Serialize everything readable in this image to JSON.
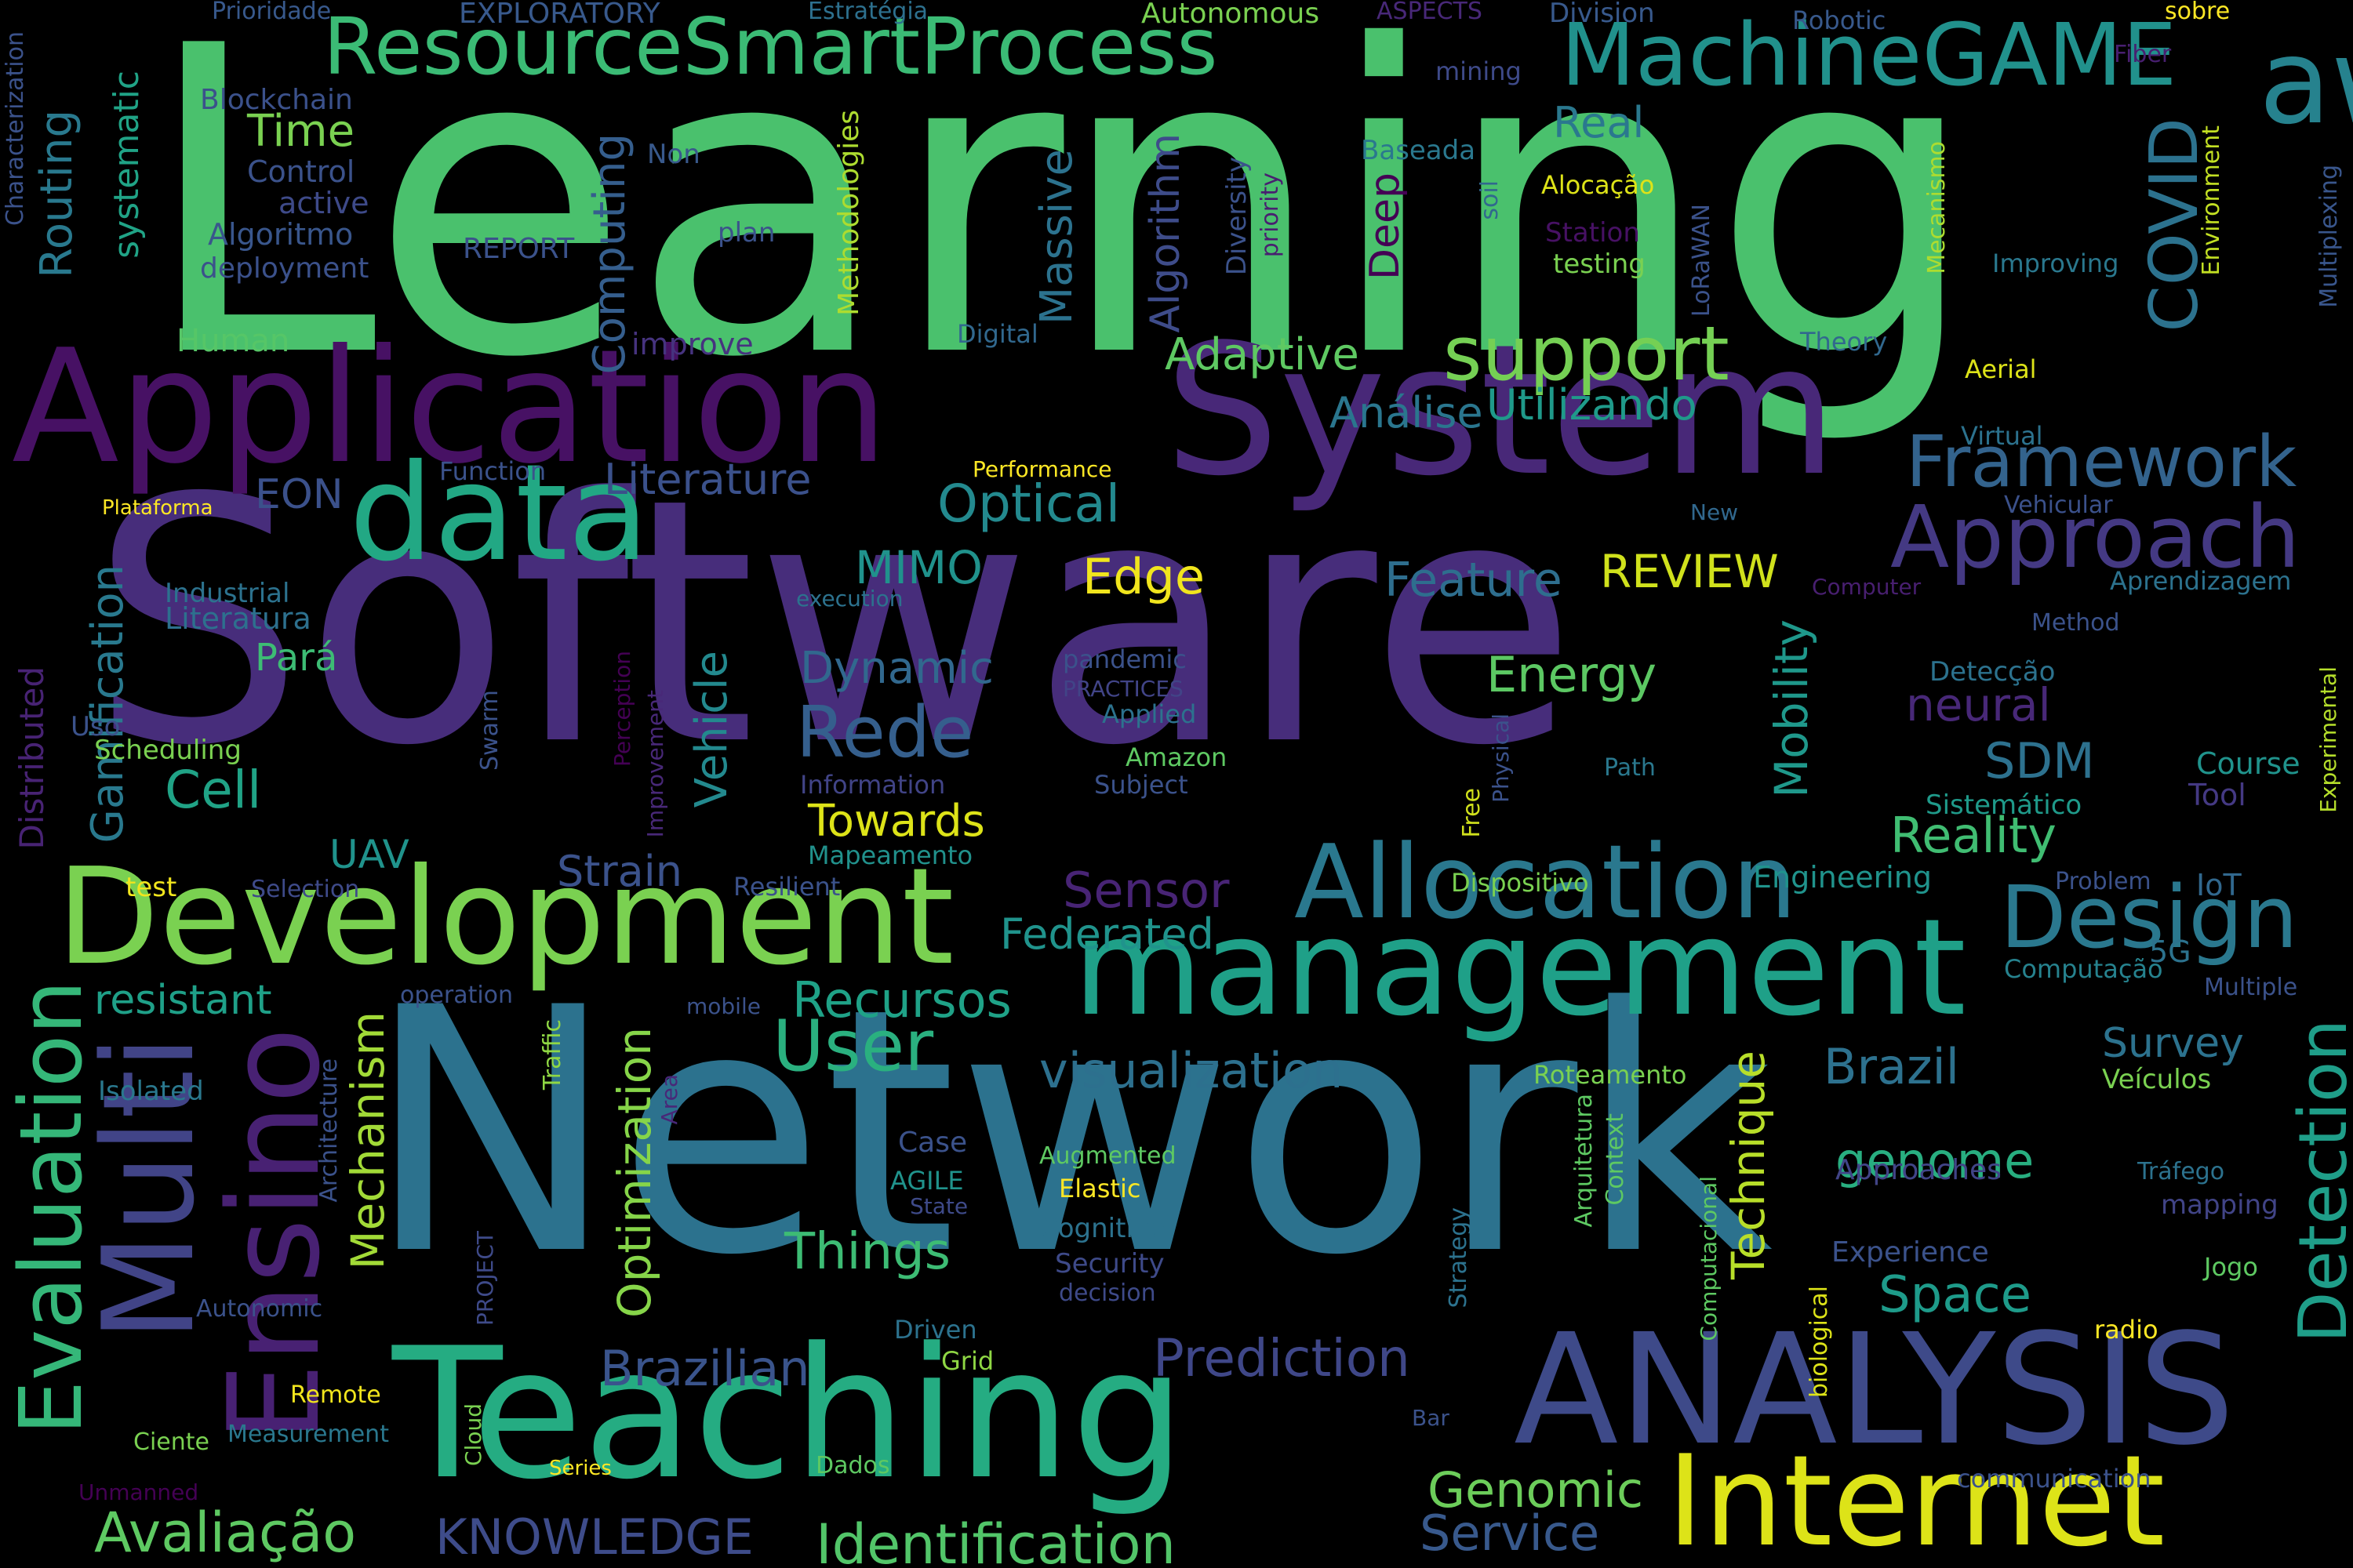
{
  "words": [
    {
      "text": "Learning",
      "color": "#4ac16d"
    },
    {
      "text": "Software",
      "color": "#472d7b"
    },
    {
      "text": "Network",
      "color": "#2c728e"
    },
    {
      "text": "Application",
      "color": "#471164"
    },
    {
      "text": "System",
      "color": "#482878"
    },
    {
      "text": "Teaching",
      "color": "#25ac82"
    },
    {
      "text": "ANALYSIS",
      "color": "#3e4a89"
    },
    {
      "text": "Development",
      "color": "#7ad151"
    },
    {
      "text": "management",
      "color": "#1fa088"
    },
    {
      "text": "Internet",
      "color": "#dde318"
    },
    {
      "text": "data",
      "color": "#22a884"
    },
    {
      "text": "aware",
      "color": "#26828e"
    },
    {
      "text": "Allocation",
      "color": "#2a788e"
    },
    {
      "text": "ResourceSmartProcess",
      "color": "#3bbb75"
    },
    {
      "text": "Multi",
      "color": "#414487"
    },
    {
      "text": "Ensino",
      "color": "#482173"
    },
    {
      "text": "Evaluation",
      "color": "#35b779"
    },
    {
      "text": "MachineGAME",
      "color": "#21918c"
    },
    {
      "text": "Approach",
      "color": "#443983"
    },
    {
      "text": "Design",
      "color": "#2a788e"
    },
    {
      "text": "support",
      "color": "#75d054"
    },
    {
      "text": "Framework",
      "color": "#33638d"
    },
    {
      "text": "Detection",
      "color": "#1f9e89"
    },
    {
      "text": "COVID",
      "color": "#2c728e"
    },
    {
      "text": "User",
      "color": "#2ab07f"
    },
    {
      "text": "Avaliação",
      "color": "#5ec962"
    },
    {
      "text": "Identification",
      "color": "#52c569"
    },
    {
      "text": "KNOWLEDGE",
      "color": "#3e4c8a"
    },
    {
      "text": "Rede",
      "color": "#355f8d"
    },
    {
      "text": "Recursos",
      "color": "#1fa287"
    },
    {
      "text": "visualization",
      "color": "#2d708e"
    },
    {
      "text": "Prediction",
      "color": "#3f4788"
    },
    {
      "text": "Optimization",
      "color": "#86d549"
    },
    {
      "text": "Mechanism",
      "color": "#a2da37"
    },
    {
      "text": "Technique",
      "color": "#b8de29"
    },
    {
      "text": "Genomic",
      "color": "#6ccd5a"
    },
    {
      "text": "Service",
      "color": "#38598c"
    },
    {
      "text": "Brazilian",
      "color": "#3a548c"
    },
    {
      "text": "Things",
      "color": "#3dbc74"
    },
    {
      "text": "Space",
      "color": "#1e9b8a"
    },
    {
      "text": "genome",
      "color": "#28ae80"
    },
    {
      "text": "Brazil",
      "color": "#2d718e"
    },
    {
      "text": "Survey",
      "color": "#2c728e"
    },
    {
      "text": "Reality",
      "color": "#40bd72"
    },
    {
      "text": "Mobility",
      "color": "#1f988b"
    },
    {
      "text": "SDM",
      "color": "#2d718e"
    },
    {
      "text": "Energy",
      "color": "#5cc863"
    },
    {
      "text": "neural",
      "color": "#482878"
    },
    {
      "text": "Feature",
      "color": "#2e6e8e"
    },
    {
      "text": "REVIEW",
      "color": "#d0e11c"
    },
    {
      "text": "Edge",
      "color": "#f1e51d"
    },
    {
      "text": "Optical",
      "color": "#23898e"
    },
    {
      "text": "MIMO",
      "color": "#20928c"
    },
    {
      "text": "Literature",
      "color": "#3b518b"
    },
    {
      "text": "Utilizando",
      "color": "#1f9a8a"
    },
    {
      "text": "Análise",
      "color": "#2a768e"
    },
    {
      "text": "Adaptive",
      "color": "#5ec962"
    },
    {
      "text": "Dynamic",
      "color": "#31688e"
    },
    {
      "text": "Towards",
      "color": "#dde318"
    },
    {
      "text": "Vehicle",
      "color": "#23898e"
    },
    {
      "text": "Cell",
      "color": "#20a386"
    },
    {
      "text": "Gamification",
      "color": "#29798e"
    },
    {
      "text": "Routing",
      "color": "#29798e"
    },
    {
      "text": "systematic",
      "color": "#20a386"
    },
    {
      "text": "Time",
      "color": "#7ad151"
    },
    {
      "text": "Real",
      "color": "#2a788e"
    },
    {
      "text": "Computing",
      "color": "#355e8d"
    },
    {
      "text": "Massive",
      "color": "#2c728e"
    },
    {
      "text": "Algorithm",
      "color": "#3e4c8a"
    },
    {
      "text": "Deep",
      "color": "#440154"
    },
    {
      "text": "Sensor",
      "color": "#482475"
    },
    {
      "text": "Federated",
      "color": "#20938c"
    },
    {
      "text": "Strain",
      "color": "#3b528b"
    },
    {
      "text": "UAV",
      "color": "#20938c"
    },
    {
      "text": "resistant",
      "color": "#1fa088"
    },
    {
      "text": "Distributed",
      "color": "#482374"
    },
    {
      "text": "Pará",
      "color": "#3dbc74"
    },
    {
      "text": "Literatura",
      "color": "#2d708e"
    },
    {
      "text": "EON",
      "color": "#3b518b"
    },
    {
      "text": "Industrial",
      "color": "#2c728e"
    },
    {
      "text": "Control",
      "color": "#3b528b"
    },
    {
      "text": "active",
      "color": "#3e4a89"
    },
    {
      "text": "Algoritmo",
      "color": "#39568c"
    },
    {
      "text": "deployment",
      "color": "#3b518b"
    },
    {
      "text": "Blockchain",
      "color": "#3b518b"
    },
    {
      "text": "Human",
      "color": "#56c667"
    },
    {
      "text": "improve",
      "color": "#46337f"
    },
    {
      "text": "REPORT",
      "color": "#3b528b"
    },
    {
      "text": "plan",
      "color": "#3b528b"
    },
    {
      "text": "Non",
      "color": "#38598c"
    },
    {
      "text": "Methodologies",
      "color": "#addc30"
    },
    {
      "text": "Diversity",
      "color": "#3b528b"
    },
    {
      "text": "priority",
      "color": "#481f70"
    },
    {
      "text": "Baseada",
      "color": "#2a788e"
    },
    {
      "text": "soil",
      "color": "#31688e"
    },
    {
      "text": "Alocação",
      "color": "#dde318"
    },
    {
      "text": "Station",
      "color": "#471164"
    },
    {
      "text": "testing",
      "color": "#7ad151"
    },
    {
      "text": "LoRaWAN",
      "color": "#3b528b"
    },
    {
      "text": "Digital",
      "color": "#31688e"
    },
    {
      "text": "Theory",
      "color": "#31688e"
    },
    {
      "text": "Aerial",
      "color": "#dde318"
    },
    {
      "text": "Mecanismo",
      "color": "#addc30"
    },
    {
      "text": "Improving",
      "color": "#2a788e"
    },
    {
      "text": "Environment",
      "color": "#c2df23"
    },
    {
      "text": "Multiplexing",
      "color": "#39568c"
    },
    {
      "text": "Characterization",
      "color": "#3b528b"
    },
    {
      "text": "Prioridade",
      "color": "#38598c"
    },
    {
      "text": "EXPLORATORY",
      "color": "#38598c"
    },
    {
      "text": "Estratégia",
      "color": "#2d708e"
    },
    {
      "text": "Autonomous",
      "color": "#7ad151"
    },
    {
      "text": "ASPECTS",
      "color": "#482878"
    },
    {
      "text": "Division",
      "color": "#38598c"
    },
    {
      "text": "Robotic",
      "color": "#38598c"
    },
    {
      "text": "sobre",
      "color": "#fde725"
    },
    {
      "text": "Fiber",
      "color": "#481f70"
    },
    {
      "text": "mining",
      "color": "#3e4a89"
    },
    {
      "text": "Plataforma",
      "color": "#fde725"
    },
    {
      "text": "Function",
      "color": "#3b528b"
    },
    {
      "text": "Performance",
      "color": "#fde725"
    },
    {
      "text": "Virtual",
      "color": "#2c728e"
    },
    {
      "text": "Vehicular",
      "color": "#3b518b"
    },
    {
      "text": "New",
      "color": "#31688e"
    },
    {
      "text": "Computer",
      "color": "#481f70"
    },
    {
      "text": "Aprendizagem",
      "color": "#2c728e"
    },
    {
      "text": "Method",
      "color": "#3b528b"
    },
    {
      "text": "execution",
      "color": "#2c728e"
    },
    {
      "text": "pandemic",
      "color": "#3b528b"
    },
    {
      "text": "PRACTICES",
      "color": "#414487"
    },
    {
      "text": "Applied",
      "color": "#2c728e"
    },
    {
      "text": "Amazon",
      "color": "#5ec962"
    },
    {
      "text": "Subject",
      "color": "#3b528b"
    },
    {
      "text": "Information",
      "color": "#414487"
    },
    {
      "text": "Detecção",
      "color": "#2c728e"
    },
    {
      "text": "Experimental",
      "color": "#b5de2b"
    },
    {
      "text": "Course",
      "color": "#20938c"
    },
    {
      "text": "Tool",
      "color": "#443983"
    },
    {
      "text": "Sistemático",
      "color": "#1f9a8a"
    },
    {
      "text": "Path",
      "color": "#2a788e"
    },
    {
      "text": "Physical",
      "color": "#3b528b"
    },
    {
      "text": "Free",
      "color": "#d0e11c"
    },
    {
      "text": "Dispositivo",
      "color": "#7ad151"
    },
    {
      "text": "Engineering",
      "color": "#20938c"
    },
    {
      "text": "Problem",
      "color": "#3b528b"
    },
    {
      "text": "IoT",
      "color": "#31688e"
    },
    {
      "text": "Computação",
      "color": "#26828e"
    },
    {
      "text": "5G",
      "color": "#2c728e"
    },
    {
      "text": "Multiple",
      "color": "#3b528b"
    },
    {
      "text": "Veículos",
      "color": "#7ad151"
    },
    {
      "text": "Swarm",
      "color": "#3b528b"
    },
    {
      "text": "Perception",
      "color": "#440154"
    },
    {
      "text": "Improvement",
      "color": "#482878"
    },
    {
      "text": "Scheduling",
      "color": "#7ad151"
    },
    {
      "text": "Uso",
      "color": "#3b528b"
    },
    {
      "text": "Mapeamento",
      "color": "#21918c"
    },
    {
      "text": "Resilient",
      "color": "#3b528b"
    },
    {
      "text": "Selection",
      "color": "#3e4a89"
    },
    {
      "text": "test",
      "color": "#f1e51d"
    },
    {
      "text": "operation",
      "color": "#3b528b"
    },
    {
      "text": "mobile",
      "color": "#3b528b"
    },
    {
      "text": "Isolated",
      "color": "#2a788e"
    },
    {
      "text": "Traffic",
      "color": "#8fd744"
    },
    {
      "text": "Area",
      "color": "#482878"
    },
    {
      "text": "Architecture",
      "color": "#3b528b"
    },
    {
      "text": "Roteamento",
      "color": "#7ad151"
    },
    {
      "text": "Arquitetura",
      "color": "#5ec962"
    },
    {
      "text": "Context",
      "color": "#5ec962"
    },
    {
      "text": "Case",
      "color": "#3b528b"
    },
    {
      "text": "AGILE",
      "color": "#20938c"
    },
    {
      "text": "State",
      "color": "#3e4a89"
    },
    {
      "text": "Augmented",
      "color": "#5ec962"
    },
    {
      "text": "Elastic",
      "color": "#fde725"
    },
    {
      "text": "Cognitive",
      "color": "#2c728e"
    },
    {
      "text": "Security",
      "color": "#3e4a89"
    },
    {
      "text": "decision",
      "color": "#3e4a89"
    },
    {
      "text": "Approaches",
      "color": "#414487"
    },
    {
      "text": "Experience",
      "color": "#3b528b"
    },
    {
      "text": "Tráfego",
      "color": "#2c728e"
    },
    {
      "text": "mapping",
      "color": "#414487"
    },
    {
      "text": "Jogo",
      "color": "#5ec962"
    },
    {
      "text": "radio",
      "color": "#fde725"
    },
    {
      "text": "biological",
      "color": "#dde318"
    },
    {
      "text": "Computacional",
      "color": "#5ec962"
    },
    {
      "text": "Strategy",
      "color": "#2c728e"
    },
    {
      "text": "PROJECT",
      "color": "#3e4a89"
    },
    {
      "text": "Driven",
      "color": "#2c728e"
    },
    {
      "text": "Grid",
      "color": "#8fd744"
    },
    {
      "text": "Autonomic",
      "color": "#3b528b"
    },
    {
      "text": "Remote",
      "color": "#f1e51d"
    },
    {
      "text": "Cloud",
      "color": "#7ad151"
    },
    {
      "text": "Bar",
      "color": "#3b528b"
    },
    {
      "text": "Measurement",
      "color": "#2a788e"
    },
    {
      "text": "Ciente",
      "color": "#7ad151"
    },
    {
      "text": "Series",
      "color": "#fde725"
    },
    {
      "text": "Dados",
      "color": "#5ec962"
    },
    {
      "text": "Unmanned",
      "color": "#440154"
    },
    {
      "text": "communication",
      "color": "#3b528b"
    }
  ]
}
